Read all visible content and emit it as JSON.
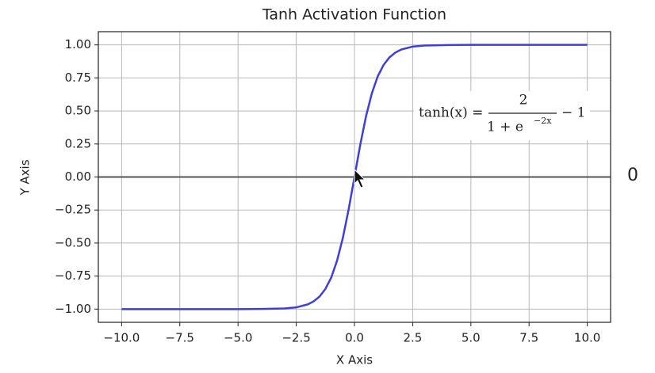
{
  "chart_data": {
    "type": "line",
    "title": "Tanh Activation Function",
    "x_label": "X Axis",
    "y_label": "Y Axis",
    "x": [
      -10,
      -9,
      -8,
      -7,
      -6,
      -5,
      -4,
      -3,
      -2.5,
      -2,
      -1.75,
      -1.5,
      -1.25,
      -1,
      -0.75,
      -0.5,
      -0.25,
      0,
      0.25,
      0.5,
      0.75,
      1,
      1.25,
      1.5,
      1.75,
      2,
      2.5,
      3,
      4,
      5,
      6,
      7,
      8,
      9,
      10
    ],
    "series": [
      {
        "name": "tanh",
        "color": "#3f3fd8",
        "values": [
          -1.0,
          -1.0,
          -1.0,
          -1.0,
          -1.0,
          -1.0,
          -0.999,
          -0.995,
          -0.987,
          -0.964,
          -0.941,
          -0.905,
          -0.848,
          -0.762,
          -0.635,
          -0.462,
          -0.245,
          0,
          0.245,
          0.462,
          0.635,
          0.762,
          0.848,
          0.905,
          0.941,
          0.964,
          0.987,
          0.995,
          0.999,
          1.0,
          1.0,
          1.0,
          1.0,
          1.0,
          1.0
        ]
      }
    ],
    "xlim": [
      -11,
      11
    ],
    "ylim": [
      -1.1,
      1.1
    ],
    "xticks": [
      {
        "value": -10,
        "label": "−10.0"
      },
      {
        "value": -7.5,
        "label": "−7.5"
      },
      {
        "value": -5,
        "label": "−5.0"
      },
      {
        "value": -2.5,
        "label": "−2.5"
      },
      {
        "value": 0,
        "label": "0.0"
      },
      {
        "value": 2.5,
        "label": "2.5"
      },
      {
        "value": 5,
        "label": "5.0"
      },
      {
        "value": 7.5,
        "label": "7.5"
      },
      {
        "value": 10,
        "label": "10.0"
      }
    ],
    "yticks": [
      {
        "value": -1,
        "label": "−1.00"
      },
      {
        "value": -0.75,
        "label": "−0.75"
      },
      {
        "value": -0.5,
        "label": "−0.50"
      },
      {
        "value": -0.25,
        "label": "−0.25"
      },
      {
        "value": 0,
        "label": "0.00"
      },
      {
        "value": 0.25,
        "label": "0.25"
      },
      {
        "value": 0.5,
        "label": "0.50"
      },
      {
        "value": 0.75,
        "label": "0.75"
      },
      {
        "value": 1,
        "label": "1.00"
      }
    ],
    "grid": true,
    "hline": 0,
    "annotation": {
      "lhs": "tanh(x) =",
      "numerator": "2",
      "denominator": "1 + e",
      "exponent": "−2x",
      "rhs": "− 1"
    },
    "side_label": "0"
  }
}
